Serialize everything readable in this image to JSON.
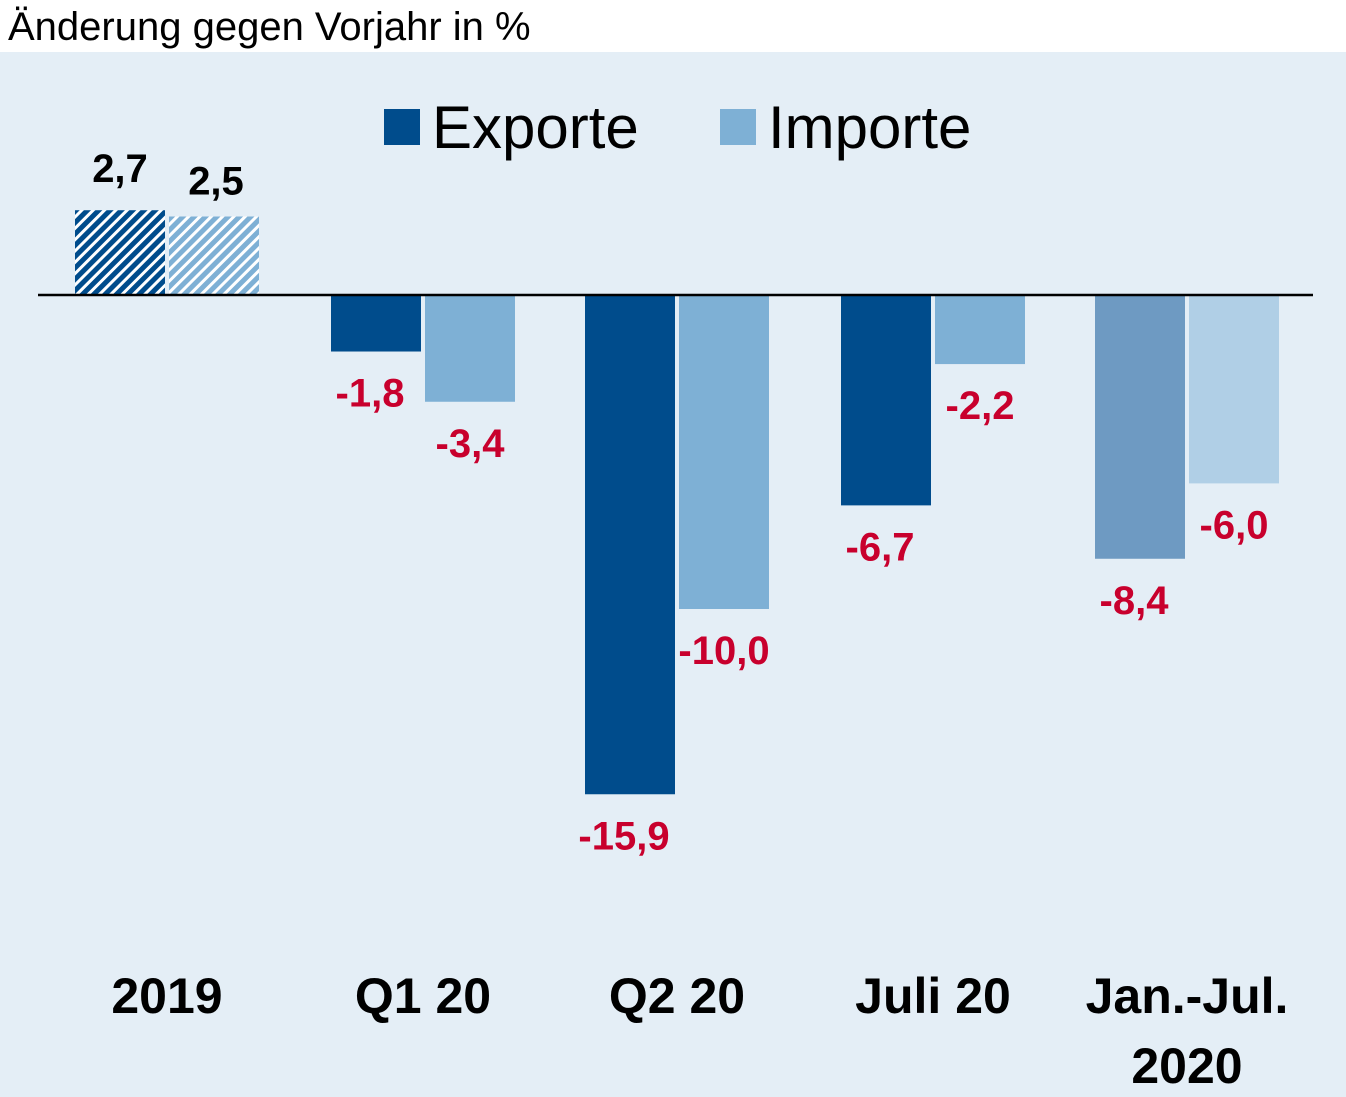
{
  "chart_data": {
    "type": "bar",
    "ylabel": "Änderung gegen Vorjahr in %",
    "categories": [
      "2019",
      "Q1 20",
      "Q2 20",
      "Juli 20",
      "Jan.-Jul. 2020"
    ],
    "series": [
      {
        "name": "Exporte",
        "values": [
          2.7,
          -1.8,
          -15.9,
          -6.7,
          -8.4
        ]
      },
      {
        "name": "Importe",
        "values": [
          2.5,
          -3.4,
          -10.0,
          -2.2,
          -6.0
        ]
      }
    ],
    "value_labels": [
      [
        "2,7",
        "-1,8",
        "-15,9",
        "-6,7",
        "-8,4"
      ],
      [
        "2,5",
        "-3,4",
        "-10,0",
        "-2,2",
        "-6,0"
      ]
    ],
    "legend_position": "top-center",
    "grid": false,
    "colors": {
      "exporte": "#004C8C",
      "importe": "#7EB0D5",
      "exporte_faded": "#6E9AC2",
      "importe_faded": "#B0CFE6",
      "background": "#E4EEF6",
      "positive_label": "#000000",
      "negative_label": "#C8002D"
    },
    "styles": {
      "hatched_categories": [
        "2019"
      ],
      "faded_categories": [
        "Jan.-Jul. 2020"
      ]
    }
  }
}
